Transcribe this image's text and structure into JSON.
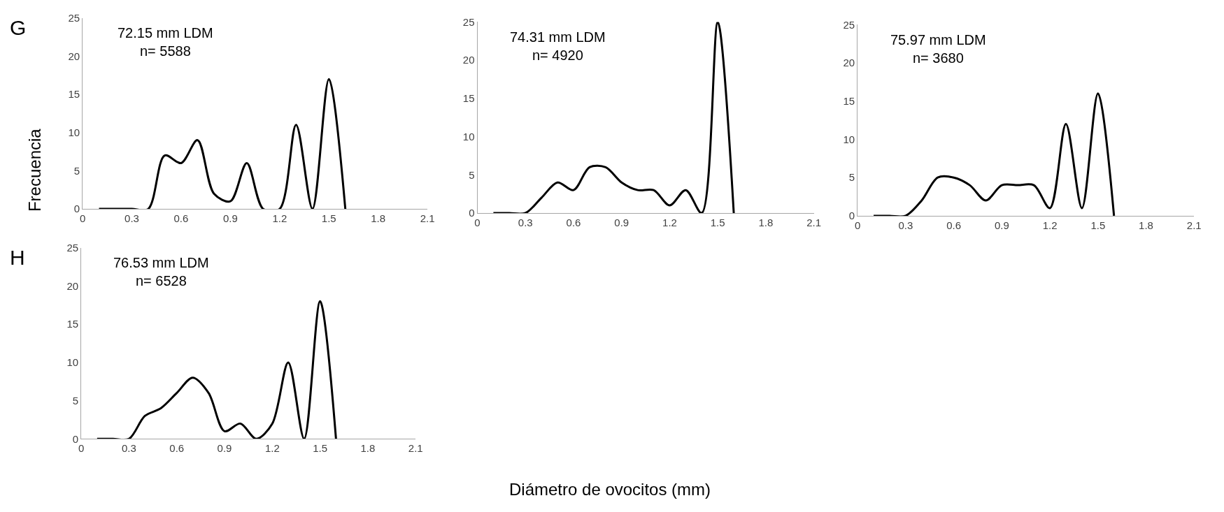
{
  "chart_data": [
    {
      "type": "line",
      "title": "G",
      "ylabel": "Frecuencia",
      "annotations": [
        "72.15 mm LDM\nn= 5588"
      ],
      "x": [
        0.1,
        0.2,
        0.3,
        0.4,
        0.5,
        0.6,
        0.7,
        0.8,
        0.9,
        1.0,
        1.1,
        1.2,
        1.3,
        1.4,
        1.5,
        1.6
      ],
      "series": [
        {
          "color": "#000000",
          "values": [
            0,
            0,
            0,
            0,
            7,
            6,
            9,
            2,
            1,
            6,
            0,
            0,
            11,
            0,
            17,
            0
          ]
        }
      ],
      "xlim": [
        0,
        2.1
      ],
      "xticks": [
        0,
        0.3,
        0.6,
        0.9,
        1.2,
        1.5,
        1.8,
        2.1
      ],
      "ylim": [
        0,
        25
      ],
      "yticks": [
        0,
        5,
        10,
        15,
        20,
        25
      ],
      "grid": false,
      "marker": "none",
      "line_style": "solid"
    },
    {
      "type": "line",
      "annotations": [
        "74.31 mm LDM\nn= 4920"
      ],
      "x": [
        0.1,
        0.2,
        0.3,
        0.4,
        0.5,
        0.6,
        0.7,
        0.8,
        0.9,
        1.0,
        1.1,
        1.2,
        1.3,
        1.4,
        1.5,
        1.6
      ],
      "series": [
        {
          "color": "#000000",
          "values": [
            0,
            0,
            0,
            2,
            4,
            3,
            6,
            6,
            4,
            3,
            3,
            1,
            3,
            0,
            25,
            0
          ]
        }
      ],
      "xlim": [
        0,
        2.1
      ],
      "xticks": [
        0,
        0.3,
        0.6,
        0.9,
        1.2,
        1.5,
        1.8,
        2.1
      ],
      "ylim": [
        0,
        25
      ],
      "yticks": [
        0,
        5,
        10,
        15,
        20,
        25
      ],
      "grid": false,
      "marker": "none",
      "line_style": "solid"
    },
    {
      "type": "line",
      "annotations": [
        "75.97 mm LDM\nn= 3680"
      ],
      "x": [
        0.1,
        0.2,
        0.3,
        0.4,
        0.5,
        0.6,
        0.7,
        0.8,
        0.9,
        1.0,
        1.1,
        1.2,
        1.3,
        1.4,
        1.5,
        1.6
      ],
      "series": [
        {
          "color": "#000000",
          "values": [
            0,
            0,
            0,
            2,
            5,
            5,
            4,
            2,
            4,
            4,
            4,
            1,
            12,
            1,
            16,
            0
          ]
        }
      ],
      "xlim": [
        0,
        2.1
      ],
      "xticks": [
        0,
        0.3,
        0.6,
        0.9,
        1.2,
        1.5,
        1.8,
        2.1
      ],
      "ylim": [
        0,
        25
      ],
      "yticks": [
        0,
        5,
        10,
        15,
        20,
        25
      ],
      "grid": false,
      "marker": "none",
      "line_style": "solid"
    },
    {
      "type": "line",
      "title": "H",
      "xlabel": "Diámetro de ovocitos (mm)",
      "annotations": [
        "76.53 mm LDM\nn= 6528"
      ],
      "x": [
        0.1,
        0.2,
        0.3,
        0.4,
        0.5,
        0.6,
        0.7,
        0.8,
        0.9,
        1.0,
        1.1,
        1.2,
        1.3,
        1.4,
        1.5,
        1.6
      ],
      "series": [
        {
          "color": "#000000",
          "values": [
            0,
            0,
            0,
            3,
            4,
            6,
            8,
            6,
            1,
            2,
            0,
            2,
            10,
            0,
            18,
            0
          ]
        }
      ],
      "xlim": [
        0,
        2.1
      ],
      "xticks": [
        0,
        0.3,
        0.6,
        0.9,
        1.2,
        1.5,
        1.8,
        2.1
      ],
      "ylim": [
        0,
        25
      ],
      "yticks": [
        0,
        5,
        10,
        15,
        20,
        25
      ],
      "grid": false,
      "marker": "none",
      "line_style": "solid"
    }
  ]
}
